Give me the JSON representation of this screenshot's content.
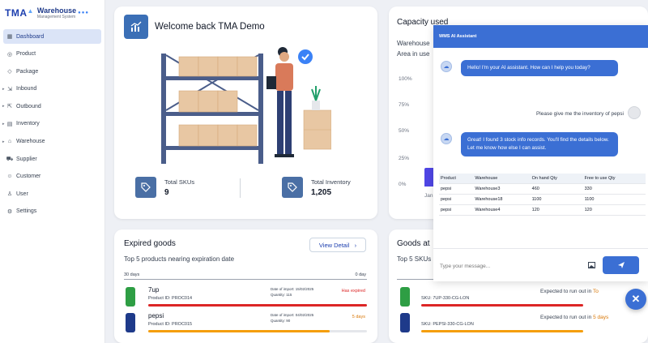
{
  "app": {
    "logo_mark": "TMA",
    "logo_title": "Warehouse",
    "logo_subtitle": "Management System"
  },
  "sidebar": {
    "items": [
      {
        "label": "Dashboard",
        "icon": "dashboard-icon",
        "active": true
      },
      {
        "label": "Product",
        "icon": "product-icon"
      },
      {
        "label": "Package",
        "icon": "package-icon"
      },
      {
        "label": "Inbound",
        "icon": "inbound-icon",
        "expandable": true
      },
      {
        "label": "Outbound",
        "icon": "outbound-icon",
        "expandable": true
      },
      {
        "label": "Inventory",
        "icon": "inventory-icon",
        "expandable": true
      },
      {
        "label": "Warehouse",
        "icon": "warehouse-icon",
        "expandable": true
      },
      {
        "label": "Supplier",
        "icon": "supplier-icon"
      },
      {
        "label": "Customer",
        "icon": "customer-icon"
      },
      {
        "label": "User",
        "icon": "user-icon"
      },
      {
        "label": "Settings",
        "icon": "settings-icon"
      }
    ]
  },
  "welcome": {
    "title": "Welcome back TMA Demo",
    "stats": [
      {
        "label": "Total SKUs",
        "value": "9"
      },
      {
        "label": "Total Inventory",
        "value": "1,205"
      }
    ]
  },
  "capacity": {
    "title": "Capacity used",
    "sub1": "Warehouse",
    "sub2": "Area in use",
    "ticks": [
      "100%",
      "75%",
      "50%",
      "25%",
      "0%"
    ],
    "month": "Jan",
    "bar_percent": 18
  },
  "expired": {
    "title": "Expired goods",
    "view_button": "View Detail",
    "view_arrow": "›",
    "subtitle": "Top 5 products nearing expiration date",
    "range_start": "30 days",
    "range_end": "0 day",
    "products": [
      {
        "name": "7up",
        "id": "Product ID: PROC014",
        "import": "Date of import: 15/02/2025",
        "qty": "Quantity: 115",
        "status": "Has expired",
        "status_color": "#dc2626",
        "bar_color": "#dc2626",
        "progress": 100
      },
      {
        "name": "pepsi",
        "id": "Product ID: PROC015",
        "import": "Date of import: 04/02/2025",
        "qty": "Quantity: 90",
        "status": "5 days",
        "status_color": "#d97706",
        "bar_color": "#f59e0b",
        "progress": 83
      }
    ]
  },
  "goods": {
    "title": "Goods at",
    "subtitle": "Top 5 SKUs",
    "items": [
      {
        "sku": "SKU: 7UP-330-CG-LON",
        "expected_prefix": "Expected to run out in",
        "expected_value": "To",
        "bar_color": "#dc2626"
      },
      {
        "sku": "SKU: PEPSI-330-CG-LON",
        "expected_prefix": "Expected to run out in",
        "expected_value": "5 days",
        "bar_color": "#f59e0b"
      }
    ]
  },
  "chat": {
    "title": "WMS AI Assistant",
    "greeting": "Hello! I'm your AI assistant. How can I help you today?",
    "user_message": "Please give me the inventory of pepsi",
    "reply": "Great! I found 3 stock info records. You'll find the details below. Let me know how else I can assist.",
    "table": {
      "headers": [
        "Product",
        "Warehouse",
        "On hand Qty",
        "Free to use Qty"
      ],
      "rows": [
        [
          "pepsi",
          "Warehouse3",
          "460",
          "330"
        ],
        [
          "pepsi",
          "Warehouse18",
          "1100",
          "1100"
        ],
        [
          "pepsi",
          "Warehouse4",
          "120",
          "120"
        ]
      ]
    },
    "input_placeholder": "Type your message...",
    "close_symbol": "✕"
  }
}
